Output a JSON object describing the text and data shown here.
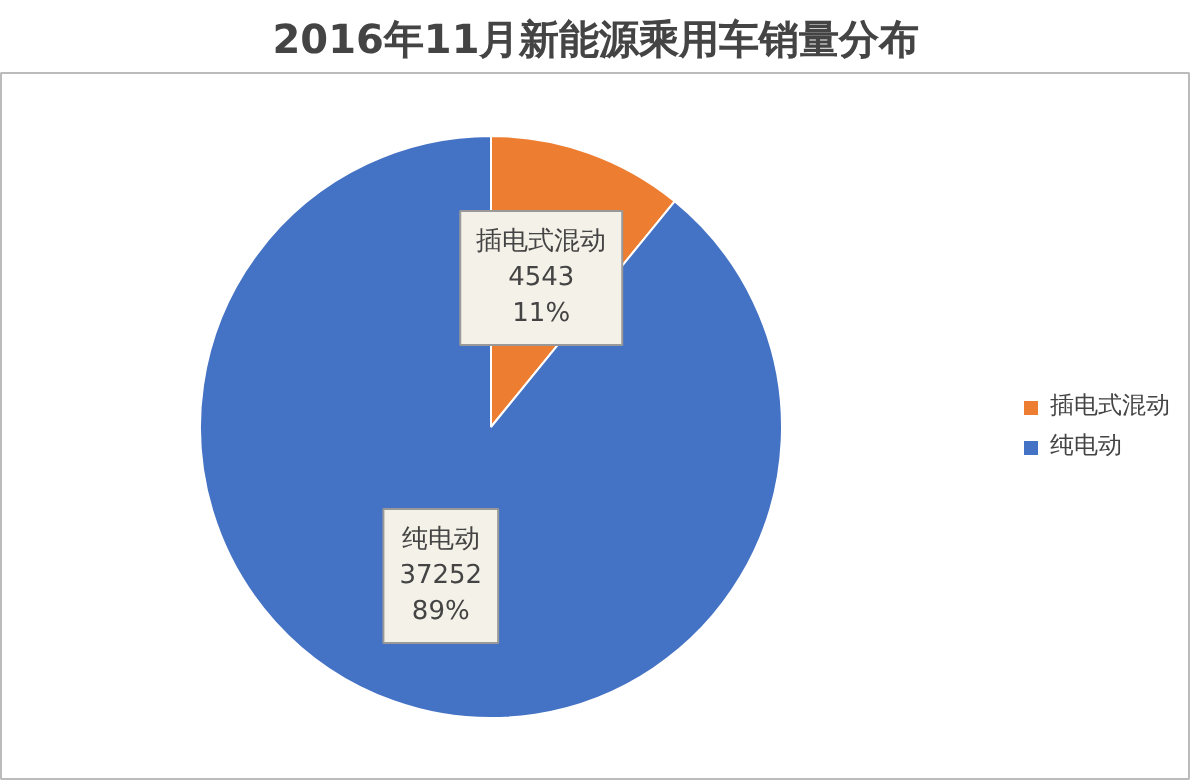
{
  "chart_data": {
    "type": "pie",
    "title": "2016年11月新能源乘用车销量分布",
    "categories": [
      "插电式混动",
      "纯电动"
    ],
    "values": [
      4543,
      37252
    ],
    "colors": [
      "#ed7d31",
      "#4472c4"
    ],
    "value_labels": [
      "插电式混动\n4543\n11%",
      "纯电动\n37252\n89%"
    ],
    "legend": "right"
  }
}
